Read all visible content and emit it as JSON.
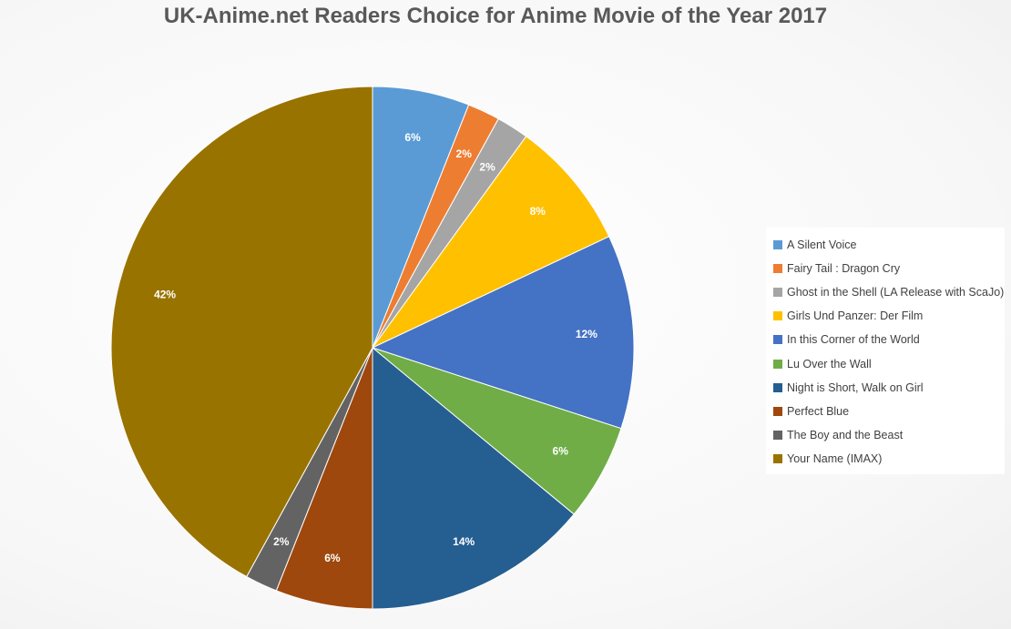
{
  "chart_data": {
    "type": "pie",
    "title": "UK-Anime.net Readers Choice for Anime Movie of the Year 2017",
    "categories": [
      "A Silent Voice",
      "Fairy Tail : Dragon Cry",
      "Ghost in the Shell (LA Release with ScaJo)",
      "Girls Und Panzer: Der Film",
      "In this Corner of the World",
      "Lu Over the Wall",
      "Night is Short, Walk on Girl",
      "Perfect Blue",
      "The Boy and the Beast",
      "Your Name (IMAX)"
    ],
    "values": [
      6,
      2,
      2,
      8,
      12,
      6,
      14,
      6,
      2,
      42
    ],
    "value_labels": [
      "6%",
      "2%",
      "2%",
      "8%",
      "12%",
      "6%",
      "14%",
      "6%",
      "2%",
      "42%"
    ],
    "colors": [
      "#5b9bd5",
      "#ed7d31",
      "#a5a5a5",
      "#ffc000",
      "#4472c4",
      "#70ad47",
      "#255e91",
      "#9e480e",
      "#636363",
      "#997300"
    ],
    "legend_position": "right"
  }
}
